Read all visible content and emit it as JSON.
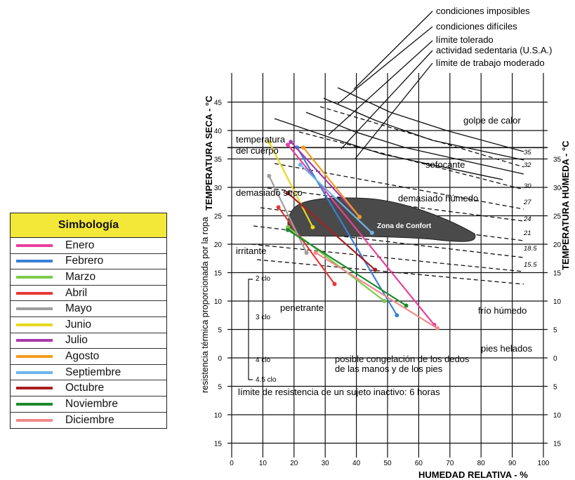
{
  "legend": {
    "title": "Simbología",
    "items": [
      {
        "label": "Enero",
        "color": "#e8409c"
      },
      {
        "label": "Febrero",
        "color": "#3a7fd8"
      },
      {
        "label": "Marzo",
        "color": "#7ccc4c"
      },
      {
        "label": "Abril",
        "color": "#e53935"
      },
      {
        "label": "Mayo",
        "color": "#9e9e9e"
      },
      {
        "label": "Junio",
        "color": "#e8d820"
      },
      {
        "label": "Julio",
        "color": "#a83aac"
      },
      {
        "label": "Agosto",
        "color": "#f39c1c"
      },
      {
        "label": "Septiembre",
        "color": "#6eb4ec"
      },
      {
        "label": "Octubre",
        "color": "#a82020"
      },
      {
        "label": "Noviembre",
        "color": "#1e8a2e"
      },
      {
        "label": "Diciembre",
        "color": "#f08a8a"
      }
    ]
  },
  "chart_data": {
    "type": "line",
    "xlabel": "HUMEDAD RELATIVA - %",
    "ylabel_left": "TEMPERATURA SECA - °C",
    "ylabel_right": "TEMPERATURA HÚMEDA - °C",
    "ylabel_lower_left": "resistencia térmica proporcionada por la ropa",
    "xlim": [
      0,
      100
    ],
    "ylim": [
      -16,
      49
    ],
    "x_ticks": [
      0,
      10,
      20,
      30,
      40,
      50,
      60,
      70,
      80,
      90,
      100
    ],
    "x_tick_labels": [
      "0",
      "10",
      "20",
      "30",
      "40",
      "50",
      "60",
      "70",
      "80",
      "90",
      "100"
    ],
    "y_ticks_left": [
      45,
      40,
      35,
      30,
      25,
      20,
      15,
      10,
      5,
      0,
      -5,
      -10,
      -15
    ],
    "y_tick_labels_left": [
      "45",
      "40",
      "35",
      "30",
      "25",
      "20",
      "15",
      "10",
      "5",
      "0",
      "5",
      "10",
      "15"
    ],
    "y_ticks_right": [
      35,
      30,
      25,
      20,
      15,
      10,
      5,
      0,
      -5,
      -10,
      -15
    ],
    "y_tick_labels_right": [
      "35",
      "30",
      "25",
      "20",
      "15",
      "10",
      "5",
      "0",
      "5",
      "10",
      "15"
    ],
    "grid": true,
    "wet_bulb_labels": [
      "35",
      "32",
      "30",
      "27",
      "24",
      "21",
      "18.5",
      "15.5"
    ],
    "clo_labels": [
      "2 clo",
      "3 clo",
      "4 clo",
      "4.5 clo"
    ],
    "top_annotations": [
      "condiciones imposibles",
      "condiciones difíciles",
      "límite tolerado",
      "actividad sedentaria (U.S.A.)",
      "límite de trabajo moderado"
    ],
    "zone_labels": {
      "golpe": "golpe de calor",
      "temp1": "temperatura",
      "temp2": "del cuerpo",
      "sofocante": "sofocante",
      "seco": "demasiado seco",
      "humedo": "demasiado húmedo",
      "confort": "Zona de Confort",
      "irritante": "irritante",
      "penetrante": "penetrante",
      "frio": "frío húmedo",
      "helados": "pies helados",
      "cong1": "posible congelación de los dedos",
      "cong2": "de las manos y de los pies",
      "limite": "límite de resistencia de un sujeto inactivo: 6 horas"
    },
    "series": [
      {
        "name": "Enero",
        "color": "#e8409c",
        "x": [
          18,
          65
        ],
        "y": [
          37.5,
          5.8
        ]
      },
      {
        "name": "Febrero",
        "color": "#3a7fd8",
        "x": [
          21,
          53
        ],
        "y": [
          37,
          7.5
        ]
      },
      {
        "name": "Marzo",
        "color": "#7ccc4c",
        "x": [
          18,
          49
        ],
        "y": [
          23,
          10
        ]
      },
      {
        "name": "Abril",
        "color": "#e53935",
        "x": [
          15,
          33
        ],
        "y": [
          26.5,
          13
        ]
      },
      {
        "name": "Mayo",
        "color": "#9e9e9e",
        "x": [
          12,
          24
        ],
        "y": [
          32,
          18.5
        ]
      },
      {
        "name": "Junio",
        "color": "#e8d820",
        "x": [
          12,
          26
        ],
        "y": [
          38,
          23
        ]
      },
      {
        "name": "Julio",
        "color": "#a83aac",
        "x": [
          19,
          41
        ],
        "y": [
          38,
          24.8
        ]
      },
      {
        "name": "Agosto",
        "color": "#f39c1c",
        "x": [
          23,
          41
        ],
        "y": [
          37,
          24.8
        ]
      },
      {
        "name": "Septiembre",
        "color": "#6eb4ec",
        "x": [
          22,
          45
        ],
        "y": [
          34,
          22
        ]
      },
      {
        "name": "Octubre",
        "color": "#a82020",
        "x": [
          18,
          46
        ],
        "y": [
          29,
          15.5
        ]
      },
      {
        "name": "Noviembre",
        "color": "#1e8a2e",
        "x": [
          18,
          56
        ],
        "y": [
          22.5,
          9.2
        ]
      },
      {
        "name": "Diciembre",
        "color": "#f08a8a",
        "x": [
          27,
          66
        ],
        "y": [
          18.5,
          5.2
        ]
      }
    ]
  }
}
